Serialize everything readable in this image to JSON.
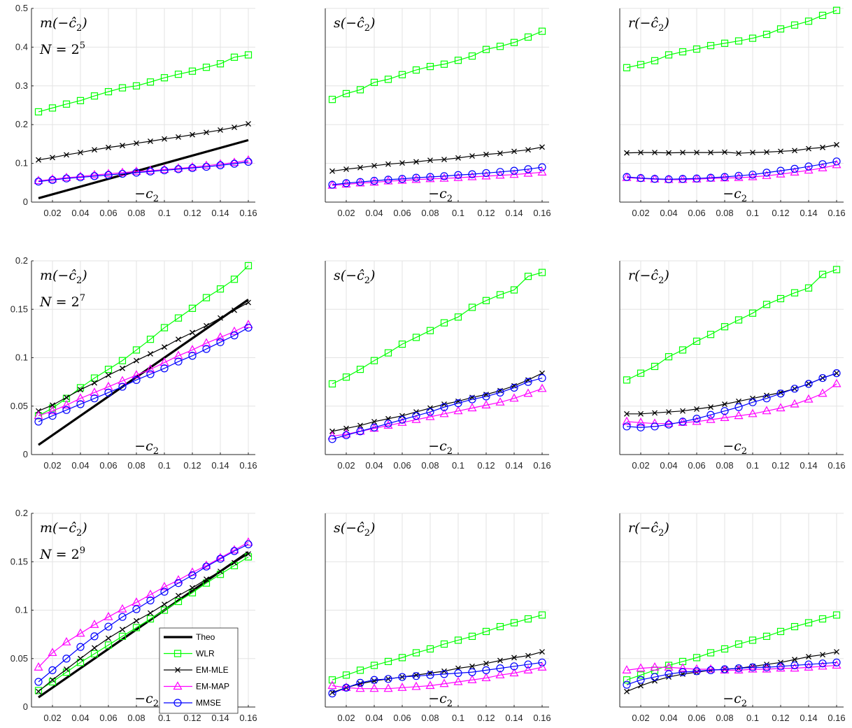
{
  "chart_data": [
    {
      "type": "line",
      "row": 0,
      "col": 0,
      "title": "m(−ĉ₂)",
      "annotation": "N = 2^5",
      "xlabel": "−c₂",
      "ylim": [
        0,
        0.5
      ],
      "yticks": [
        0,
        0.1,
        0.2,
        0.3,
        0.4,
        0.5
      ],
      "ytick_labels": [
        "0",
        "0.1",
        "0.2",
        "0.3",
        "0.4",
        "0.5"
      ],
      "series": [
        {
          "name": "WLR",
          "values": [
            0.233,
            0.243,
            0.253,
            0.262,
            0.274,
            0.285,
            0.295,
            0.3,
            0.31,
            0.321,
            0.33,
            0.338,
            0.348,
            0.357,
            0.374,
            0.38
          ]
        },
        {
          "name": "EM-MLE",
          "values": [
            0.109,
            0.115,
            0.122,
            0.128,
            0.135,
            0.141,
            0.146,
            0.152,
            0.157,
            0.163,
            0.168,
            0.174,
            0.18,
            0.186,
            0.193,
            0.202
          ]
        },
        {
          "name": "EM-MAP",
          "values": [
            0.055,
            0.059,
            0.063,
            0.066,
            0.07,
            0.073,
            0.076,
            0.079,
            0.081,
            0.084,
            0.087,
            0.09,
            0.094,
            0.098,
            0.102,
            0.108
          ]
        },
        {
          "name": "MMSE",
          "values": [
            0.053,
            0.057,
            0.061,
            0.064,
            0.067,
            0.07,
            0.073,
            0.076,
            0.079,
            0.082,
            0.085,
            0.088,
            0.091,
            0.095,
            0.099,
            0.104
          ]
        }
      ]
    },
    {
      "type": "line",
      "row": 0,
      "col": 1,
      "title": "s(−ĉ₂)",
      "xlabel": "−c₂",
      "ylim": [
        0,
        0.5
      ],
      "series": [
        {
          "name": "WLR",
          "values": [
            0.265,
            0.28,
            0.29,
            0.309,
            0.317,
            0.329,
            0.341,
            0.35,
            0.356,
            0.366,
            0.377,
            0.394,
            0.402,
            0.412,
            0.426,
            0.441
          ]
        },
        {
          "name": "EM-MLE",
          "values": [
            0.08,
            0.085,
            0.089,
            0.094,
            0.098,
            0.101,
            0.104,
            0.108,
            0.11,
            0.114,
            0.119,
            0.123,
            0.126,
            0.131,
            0.135,
            0.142
          ]
        },
        {
          "name": "EM-MAP",
          "values": [
            0.043,
            0.046,
            0.049,
            0.051,
            0.054,
            0.056,
            0.058,
            0.06,
            0.061,
            0.063,
            0.065,
            0.067,
            0.069,
            0.071,
            0.074,
            0.077
          ]
        },
        {
          "name": "MMSE",
          "values": [
            0.045,
            0.049,
            0.052,
            0.055,
            0.058,
            0.06,
            0.063,
            0.065,
            0.067,
            0.07,
            0.072,
            0.075,
            0.078,
            0.081,
            0.085,
            0.09
          ]
        }
      ]
    },
    {
      "type": "line",
      "row": 0,
      "col": 2,
      "title": "r(−ĉ₂)",
      "xlabel": "−c₂",
      "ylim": [
        0,
        0.5
      ],
      "series": [
        {
          "name": "WLR",
          "values": [
            0.347,
            0.355,
            0.365,
            0.38,
            0.388,
            0.395,
            0.404,
            0.41,
            0.416,
            0.423,
            0.433,
            0.447,
            0.457,
            0.467,
            0.482,
            0.495
          ]
        },
        {
          "name": "EM-MLE",
          "values": [
            0.127,
            0.128,
            0.128,
            0.127,
            0.128,
            0.128,
            0.128,
            0.129,
            0.126,
            0.128,
            0.129,
            0.131,
            0.133,
            0.138,
            0.141,
            0.148
          ]
        },
        {
          "name": "EM-MAP",
          "values": [
            0.063,
            0.061,
            0.059,
            0.058,
            0.058,
            0.059,
            0.061,
            0.062,
            0.063,
            0.065,
            0.068,
            0.072,
            0.077,
            0.082,
            0.088,
            0.096
          ]
        },
        {
          "name": "MMSE",
          "values": [
            0.065,
            0.062,
            0.06,
            0.059,
            0.06,
            0.061,
            0.063,
            0.065,
            0.068,
            0.071,
            0.076,
            0.081,
            0.086,
            0.092,
            0.098,
            0.105
          ]
        }
      ]
    },
    {
      "type": "line",
      "row": 1,
      "col": 0,
      "title": "m(−ĉ₂)",
      "annotation": "N = 2^7",
      "xlabel": "−c₂",
      "ylim": [
        0,
        0.2
      ],
      "yticks": [
        0,
        0.05,
        0.1,
        0.15,
        0.2
      ],
      "ytick_labels": [
        "0",
        "0.05",
        "0.1",
        "0.15",
        "0.2"
      ],
      "series": [
        {
          "name": "WLR",
          "values": [
            0.04,
            0.048,
            0.058,
            0.069,
            0.079,
            0.088,
            0.097,
            0.108,
            0.119,
            0.131,
            0.141,
            0.151,
            0.162,
            0.171,
            0.181,
            0.195
          ]
        },
        {
          "name": "EM-MLE",
          "values": [
            0.045,
            0.051,
            0.059,
            0.067,
            0.074,
            0.082,
            0.089,
            0.097,
            0.104,
            0.111,
            0.119,
            0.126,
            0.133,
            0.141,
            0.149,
            0.157
          ]
        },
        {
          "name": "EM-MAP",
          "values": [
            0.04,
            0.045,
            0.051,
            0.058,
            0.064,
            0.07,
            0.076,
            0.082,
            0.088,
            0.095,
            0.102,
            0.108,
            0.115,
            0.121,
            0.127,
            0.134
          ]
        },
        {
          "name": "MMSE",
          "values": [
            0.034,
            0.04,
            0.046,
            0.052,
            0.058,
            0.064,
            0.07,
            0.077,
            0.083,
            0.089,
            0.096,
            0.102,
            0.109,
            0.116,
            0.123,
            0.131
          ]
        }
      ]
    },
    {
      "type": "line",
      "row": 1,
      "col": 1,
      "title": "s(−ĉ₂)",
      "xlabel": "−c₂",
      "ylim": [
        0,
        0.2
      ],
      "series": [
        {
          "name": "WLR",
          "values": [
            0.073,
            0.08,
            0.088,
            0.097,
            0.105,
            0.114,
            0.121,
            0.128,
            0.136,
            0.142,
            0.152,
            0.159,
            0.165,
            0.17,
            0.184,
            0.188
          ]
        },
        {
          "name": "EM-MLE",
          "values": [
            0.024,
            0.027,
            0.03,
            0.034,
            0.037,
            0.04,
            0.044,
            0.048,
            0.052,
            0.055,
            0.059,
            0.062,
            0.066,
            0.071,
            0.077,
            0.084
          ]
        },
        {
          "name": "EM-MAP",
          "values": [
            0.019,
            0.021,
            0.024,
            0.027,
            0.03,
            0.033,
            0.036,
            0.039,
            0.042,
            0.045,
            0.048,
            0.051,
            0.054,
            0.058,
            0.063,
            0.068
          ]
        },
        {
          "name": "MMSE",
          "values": [
            0.016,
            0.02,
            0.024,
            0.028,
            0.032,
            0.036,
            0.04,
            0.044,
            0.049,
            0.053,
            0.057,
            0.06,
            0.064,
            0.069,
            0.075,
            0.079
          ]
        }
      ]
    },
    {
      "type": "line",
      "row": 1,
      "col": 2,
      "title": "r(−ĉ₂)",
      "xlabel": "−c₂",
      "ylim": [
        0,
        0.2
      ],
      "series": [
        {
          "name": "WLR",
          "values": [
            0.077,
            0.084,
            0.091,
            0.101,
            0.108,
            0.117,
            0.124,
            0.132,
            0.139,
            0.146,
            0.155,
            0.161,
            0.167,
            0.172,
            0.186,
            0.191
          ]
        },
        {
          "name": "EM-MLE",
          "values": [
            0.042,
            0.042,
            0.043,
            0.044,
            0.045,
            0.047,
            0.049,
            0.052,
            0.055,
            0.058,
            0.061,
            0.064,
            0.068,
            0.073,
            0.079,
            0.084
          ]
        },
        {
          "name": "EM-MAP",
          "values": [
            0.034,
            0.033,
            0.032,
            0.032,
            0.033,
            0.034,
            0.036,
            0.038,
            0.04,
            0.042,
            0.045,
            0.048,
            0.052,
            0.057,
            0.063,
            0.073
          ]
        },
        {
          "name": "MMSE",
          "values": [
            0.029,
            0.028,
            0.029,
            0.031,
            0.034,
            0.037,
            0.041,
            0.045,
            0.049,
            0.054,
            0.058,
            0.063,
            0.068,
            0.073,
            0.079,
            0.084
          ]
        }
      ]
    },
    {
      "type": "line",
      "row": 2,
      "col": 0,
      "title": "m(−ĉ₂)",
      "annotation": "N = 2^9",
      "xlabel": "−c₂",
      "ylim": [
        0,
        0.2
      ],
      "yticks": [
        0,
        0.05,
        0.1,
        0.15,
        0.2
      ],
      "ytick_labels": [
        "0",
        "0.05",
        "0.1",
        "0.15",
        "0.2"
      ],
      "series": [
        {
          "name": "WLR",
          "values": [
            0.017,
            0.026,
            0.036,
            0.046,
            0.055,
            0.064,
            0.073,
            0.082,
            0.091,
            0.1,
            0.109,
            0.118,
            0.128,
            0.137,
            0.146,
            0.155
          ]
        },
        {
          "name": "EM-MLE",
          "values": [
            0.016,
            0.028,
            0.039,
            0.05,
            0.061,
            0.071,
            0.08,
            0.089,
            0.097,
            0.106,
            0.115,
            0.123,
            0.132,
            0.14,
            0.149,
            0.158
          ]
        },
        {
          "name": "EM-MAP",
          "values": [
            0.041,
            0.056,
            0.067,
            0.076,
            0.085,
            0.093,
            0.101,
            0.108,
            0.116,
            0.124,
            0.131,
            0.139,
            0.146,
            0.154,
            0.162,
            0.17
          ]
        },
        {
          "name": "MMSE",
          "values": [
            0.026,
            0.038,
            0.05,
            0.062,
            0.073,
            0.083,
            0.093,
            0.101,
            0.11,
            0.119,
            0.128,
            0.136,
            0.145,
            0.153,
            0.161,
            0.168
          ]
        }
      ]
    },
    {
      "type": "line",
      "row": 2,
      "col": 1,
      "title": "s(−ĉ₂)",
      "xlabel": "−c₂",
      "ylim": [
        0,
        0.2
      ],
      "series": [
        {
          "name": "WLR",
          "values": [
            0.028,
            0.033,
            0.038,
            0.043,
            0.047,
            0.051,
            0.056,
            0.06,
            0.065,
            0.069,
            0.073,
            0.078,
            0.083,
            0.087,
            0.091,
            0.095
          ]
        },
        {
          "name": "EM-MLE",
          "values": [
            0.015,
            0.02,
            0.024,
            0.027,
            0.029,
            0.031,
            0.033,
            0.035,
            0.037,
            0.04,
            0.042,
            0.045,
            0.048,
            0.051,
            0.053,
            0.057
          ]
        },
        {
          "name": "EM-MAP",
          "values": [
            0.022,
            0.02,
            0.019,
            0.019,
            0.019,
            0.02,
            0.021,
            0.022,
            0.024,
            0.026,
            0.028,
            0.03,
            0.033,
            0.035,
            0.038,
            0.041
          ]
        },
        {
          "name": "MMSE",
          "values": [
            0.014,
            0.02,
            0.025,
            0.028,
            0.029,
            0.031,
            0.032,
            0.033,
            0.034,
            0.035,
            0.036,
            0.038,
            0.04,
            0.042,
            0.044,
            0.046
          ]
        }
      ]
    },
    {
      "type": "line",
      "row": 2,
      "col": 2,
      "title": "r(−ĉ₂)",
      "xlabel": "−c₂",
      "ylim": [
        0,
        0.2
      ],
      "series": [
        {
          "name": "WLR",
          "values": [
            0.028,
            0.033,
            0.038,
            0.043,
            0.047,
            0.051,
            0.056,
            0.06,
            0.065,
            0.069,
            0.073,
            0.078,
            0.083,
            0.087,
            0.091,
            0.095
          ]
        },
        {
          "name": "EM-MLE",
          "values": [
            0.016,
            0.022,
            0.027,
            0.031,
            0.034,
            0.036,
            0.038,
            0.039,
            0.04,
            0.042,
            0.044,
            0.046,
            0.049,
            0.052,
            0.054,
            0.057
          ]
        },
        {
          "name": "EM-MAP",
          "values": [
            0.038,
            0.04,
            0.041,
            0.041,
            0.04,
            0.039,
            0.039,
            0.038,
            0.038,
            0.039,
            0.039,
            0.04,
            0.04,
            0.041,
            0.042,
            0.043
          ]
        },
        {
          "name": "MMSE",
          "values": [
            0.023,
            0.028,
            0.031,
            0.034,
            0.036,
            0.037,
            0.038,
            0.039,
            0.04,
            0.041,
            0.041,
            0.042,
            0.043,
            0.044,
            0.045,
            0.046
          ]
        }
      ]
    }
  ],
  "shared": {
    "x": [
      0.01,
      0.02,
      0.03,
      0.04,
      0.05,
      0.06,
      0.07,
      0.08,
      0.09,
      0.1,
      0.11,
      0.12,
      0.13,
      0.14,
      0.15,
      0.16
    ],
    "xlim": [
      0.005,
      0.165
    ],
    "xticks": [
      0.02,
      0.04,
      0.06,
      0.08,
      0.1,
      0.12,
      0.14,
      0.16
    ],
    "xtick_labels": [
      "0.02",
      "0.04",
      "0.06",
      "0.08",
      "0.1",
      "0.12",
      "0.14",
      "0.16"
    ],
    "theo": {
      "name": "Theo",
      "x": [
        0.01,
        0.16
      ],
      "values": [
        0.01,
        0.16
      ],
      "panels_col": 0
    },
    "grid": true,
    "legend": {
      "placement": "bottom-right of bottom-left panel",
      "entries": [
        {
          "name": "Theo",
          "color": "#000000",
          "marker": "none",
          "thick": true
        },
        {
          "name": "WLR",
          "color": "#00ff00",
          "marker": "square"
        },
        {
          "name": "EM-MLE",
          "color": "#000000",
          "marker": "x"
        },
        {
          "name": "EM-MAP",
          "color": "#ff00ff",
          "marker": "triangle"
        },
        {
          "name": "MMSE",
          "color": "#0000ff",
          "marker": "circle"
        }
      ]
    },
    "series_style": {
      "WLR": {
        "color": "#00ff00",
        "marker": "square"
      },
      "EM-MLE": {
        "color": "#000000",
        "marker": "x"
      },
      "EM-MAP": {
        "color": "#ff00ff",
        "marker": "triangle"
      },
      "MMSE": {
        "color": "#0000ff",
        "marker": "circle"
      }
    }
  }
}
